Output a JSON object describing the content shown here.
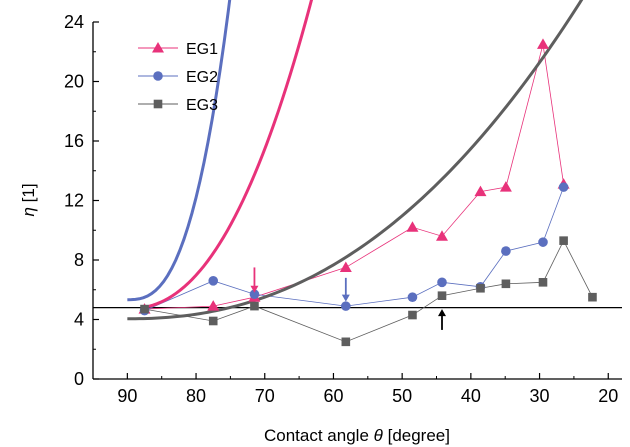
{
  "chart_data": {
    "type": "line",
    "xlabel_prefix": "Contact angle ",
    "xlabel_symbol": "θ",
    "xlabel_suffix": " [degree]",
    "ylabel_symbol": "η",
    "ylabel_unit": " [1]",
    "xlim": [
      95,
      18
    ],
    "ylim": [
      0,
      24
    ],
    "x_ticks": [
      90,
      80,
      70,
      60,
      50,
      40,
      30,
      20
    ],
    "y_ticks": [
      0,
      4,
      8,
      12,
      16,
      20,
      24
    ],
    "reference_line": 4.8,
    "series": [
      {
        "name": "EG1",
        "color": "#e8327a",
        "marker": "triangle",
        "points": [
          [
            87.5,
            4.7
          ],
          [
            77.5,
            4.9
          ],
          [
            71.5,
            5.5
          ],
          [
            58.2,
            7.5
          ],
          [
            48.5,
            10.2
          ],
          [
            44.2,
            9.6
          ],
          [
            38.6,
            12.6
          ],
          [
            34.9,
            12.9
          ],
          [
            29.5,
            22.5
          ],
          [
            26.5,
            13.1
          ]
        ],
        "fit": {
          "a": 4.72,
          "b": 0.0127,
          "c": 2.25,
          "xmin": 19.5,
          "xmax": 88
        }
      },
      {
        "name": "EG2",
        "color": "#5b6fbf",
        "marker": "circle",
        "points": [
          [
            87.5,
            4.6
          ],
          [
            77.5,
            6.6
          ],
          [
            71.5,
            5.7
          ],
          [
            58.2,
            4.9
          ],
          [
            48.5,
            5.5
          ],
          [
            44.2,
            6.5
          ],
          [
            38.6,
            6.2
          ],
          [
            34.9,
            8.6
          ],
          [
            29.5,
            9.2
          ],
          [
            26.5,
            12.9
          ]
        ],
        "fit": {
          "a": 5.33,
          "b": 0.0137,
          "c": 2.7,
          "xmin": 19.5,
          "xmax": 90
        }
      },
      {
        "name": "EG3",
        "color": "#5e5e5e",
        "marker": "square",
        "points": [
          [
            87.5,
            4.7
          ],
          [
            77.5,
            3.9
          ],
          [
            71.5,
            4.9
          ],
          [
            58.2,
            2.5
          ],
          [
            48.5,
            4.3
          ],
          [
            44.2,
            5.6
          ],
          [
            38.6,
            6.1
          ],
          [
            34.9,
            6.4
          ],
          [
            29.5,
            6.5
          ],
          [
            26.5,
            9.3
          ],
          [
            22.3,
            5.5
          ]
        ],
        "fit": {
          "a": 4.05,
          "b": 0.00172,
          "c": 2.25,
          "xmin": 19.5,
          "xmax": 90
        }
      }
    ],
    "arrows": [
      {
        "x": 71.5,
        "color": "#e8327a",
        "direction": "down",
        "y_from": 7.5,
        "y_to": 5.8
      },
      {
        "x": 58.2,
        "color": "#5b6fbf",
        "direction": "down",
        "y_from": 6.8,
        "y_to": 5.2
      },
      {
        "x": 44.2,
        "color": "#000000",
        "direction": "up",
        "y_from": 3.3,
        "y_to": 4.7
      }
    ],
    "legend_position": "top-left",
    "grid": false
  }
}
